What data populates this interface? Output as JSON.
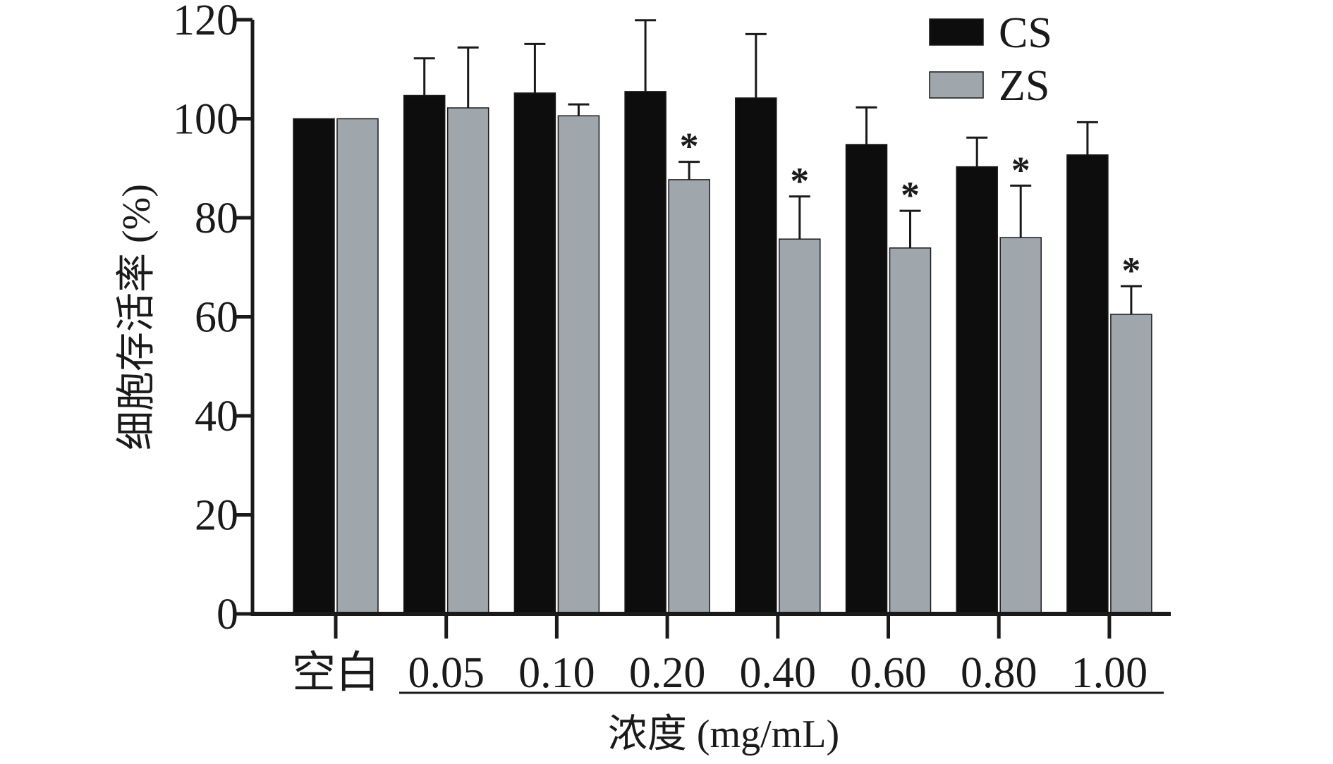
{
  "chart_data": {
    "type": "bar",
    "categories": [
      "空白",
      "0.05",
      "0.10",
      "0.20",
      "0.40",
      "0.60",
      "0.80",
      "1.00"
    ],
    "series": [
      {
        "name": "CS",
        "color": "#0d0d0d",
        "values": [
          100,
          104.7,
          105.2,
          105.5,
          104.2,
          94.8,
          90.3,
          92.7
        ],
        "error": [
          0,
          7.5,
          9.9,
          14.4,
          12.9,
          7.5,
          5.9,
          6.6
        ],
        "significant": [
          false,
          false,
          false,
          false,
          false,
          false,
          false,
          false
        ]
      },
      {
        "name": "ZS",
        "color": "#9fa6ac",
        "values": [
          100,
          102.2,
          100.6,
          87.7,
          75.7,
          73.9,
          76.0,
          60.5
        ],
        "error": [
          0,
          12.2,
          2.3,
          3.6,
          8.6,
          7.5,
          10.5,
          5.7
        ],
        "significant": [
          false,
          false,
          false,
          true,
          true,
          true,
          true,
          true
        ]
      }
    ],
    "significance_marker": "*",
    "ylabel": "细胞存活率 (%)",
    "xlabel": "浓度 (mg/mL)",
    "ylim": [
      0,
      120
    ],
    "yticks": [
      0,
      20,
      40,
      60,
      80,
      100,
      120
    ],
    "grid": false,
    "legend": {
      "placement": "top-right",
      "entries": [
        "CS",
        "ZS"
      ]
    }
  }
}
